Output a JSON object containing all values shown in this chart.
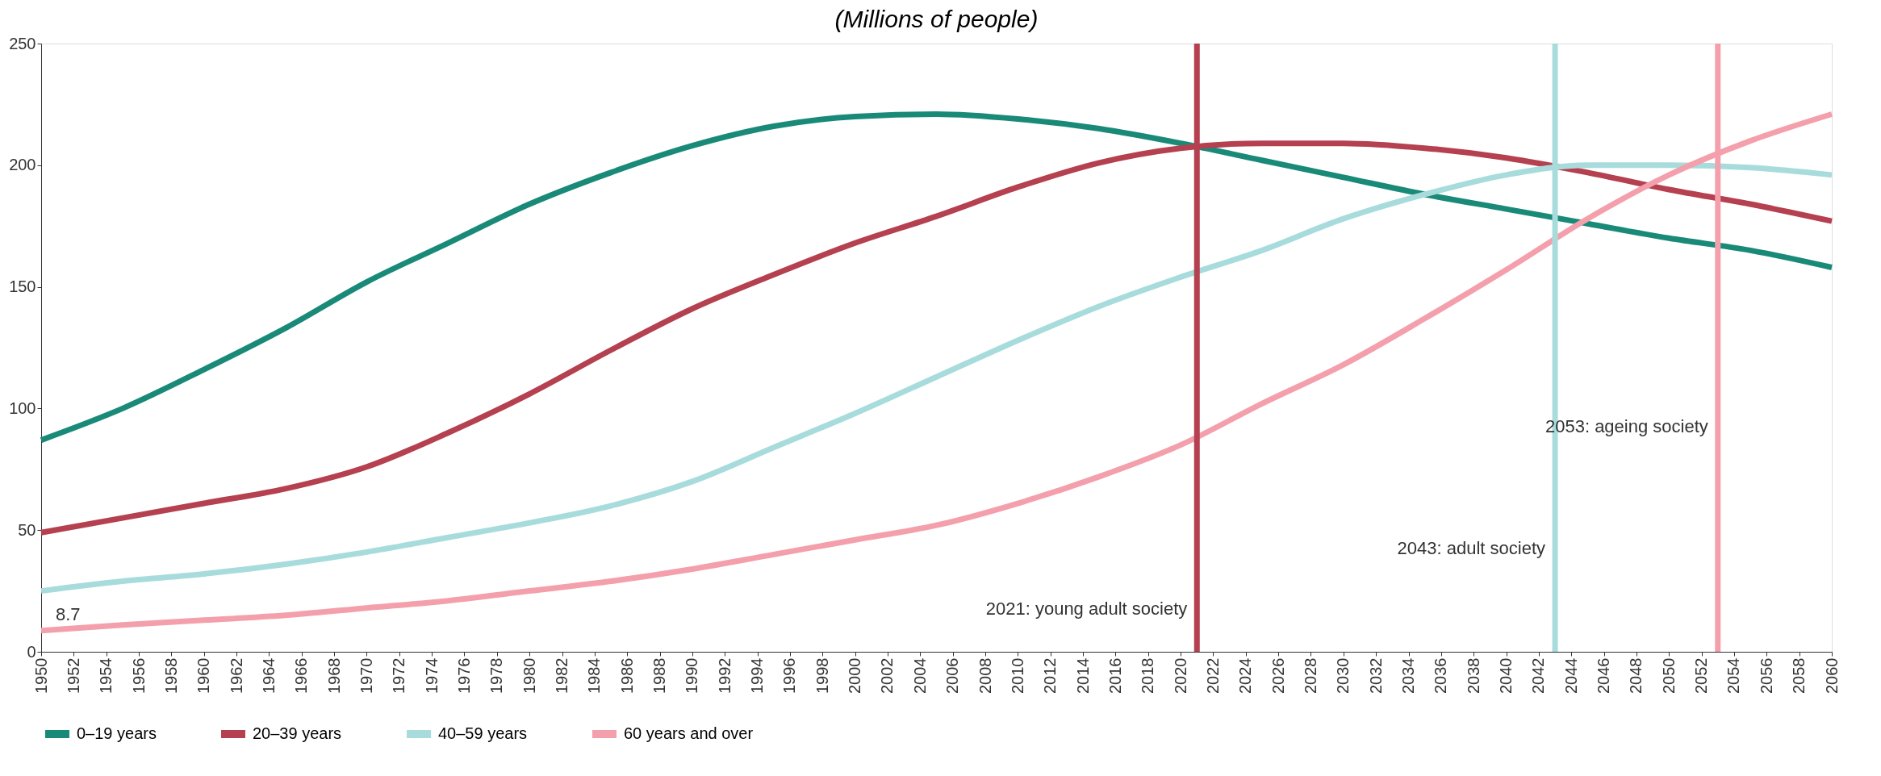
{
  "chart_data": {
    "type": "line",
    "title": "(Millions of people)",
    "x": [
      1950,
      1955,
      1960,
      1965,
      1970,
      1975,
      1980,
      1985,
      1990,
      1995,
      2000,
      2005,
      2010,
      2015,
      2020,
      2025,
      2030,
      2035,
      2040,
      2045,
      2050,
      2055,
      2060
    ],
    "series": [
      {
        "name": "0–19 years",
        "color": "#1a8a78",
        "values": [
          87,
          100,
          116,
          133,
          152,
          168,
          184,
          197,
          208,
          216,
          220,
          221,
          219,
          215,
          209,
          202,
          195,
          188,
          182,
          176,
          170,
          165,
          158
        ]
      },
      {
        "name": "20–39 years",
        "color": "#b5404f",
        "values": [
          49,
          55,
          61,
          67,
          76,
          90,
          106,
          124,
          141,
          155,
          168,
          179,
          191,
          201,
          207,
          209,
          209,
          207,
          203,
          197,
          190,
          184,
          177
        ]
      },
      {
        "name": "40–59 years",
        "color": "#a8dcdc",
        "values": [
          25,
          29,
          32,
          36,
          41,
          47,
          53,
          60,
          70,
          84,
          98,
          113,
          128,
          142,
          154,
          165,
          178,
          188,
          196,
          200,
          200,
          199,
          196
        ]
      },
      {
        "name": "60 years and over",
        "color": "#f4a0ac",
        "values": [
          8.7,
          11,
          13,
          15,
          18,
          21,
          25,
          29,
          34,
          40,
          46,
          52,
          61,
          72,
          85,
          102,
          118,
          137,
          157,
          178,
          196,
          210,
          221
        ],
        "value_labels": [
          "8.7",
          null,
          null,
          null,
          null,
          null,
          null,
          null,
          null,
          null,
          null,
          null,
          null,
          null,
          null,
          null,
          null,
          null,
          null,
          null,
          null,
          null,
          null
        ]
      }
    ],
    "ref_lines": [
      {
        "axis": "x",
        "value": 2021,
        "label": "2021: young adult society",
        "color": "#b5404f"
      },
      {
        "axis": "x",
        "value": 2043,
        "label": "2043: adult society",
        "color": "#a8dcdc"
      },
      {
        "axis": "x",
        "value": 2053,
        "label": "2053: ageing society",
        "color": "#f4a0ac"
      }
    ],
    "xlim": [
      1950,
      2060
    ],
    "xticks": [
      1950,
      1952,
      1954,
      1956,
      1958,
      1960,
      1962,
      1964,
      1966,
      1968,
      1970,
      1972,
      1974,
      1976,
      1978,
      1980,
      1982,
      1984,
      1986,
      1988,
      1990,
      1992,
      1994,
      1996,
      1998,
      2000,
      2002,
      2004,
      2006,
      2008,
      2010,
      2012,
      2014,
      2016,
      2018,
      2020,
      2022,
      2024,
      2026,
      2028,
      2030,
      2032,
      2034,
      2036,
      2038,
      2040,
      2042,
      2044,
      2046,
      2048,
      2050,
      2052,
      2054,
      2056,
      2058,
      2060
    ],
    "ylim": [
      0,
      250
    ],
    "yticks": [
      0,
      50,
      100,
      150,
      200,
      250
    ],
    "grid": false,
    "legend": "bottom",
    "marker": "none",
    "line_style": "solid"
  }
}
